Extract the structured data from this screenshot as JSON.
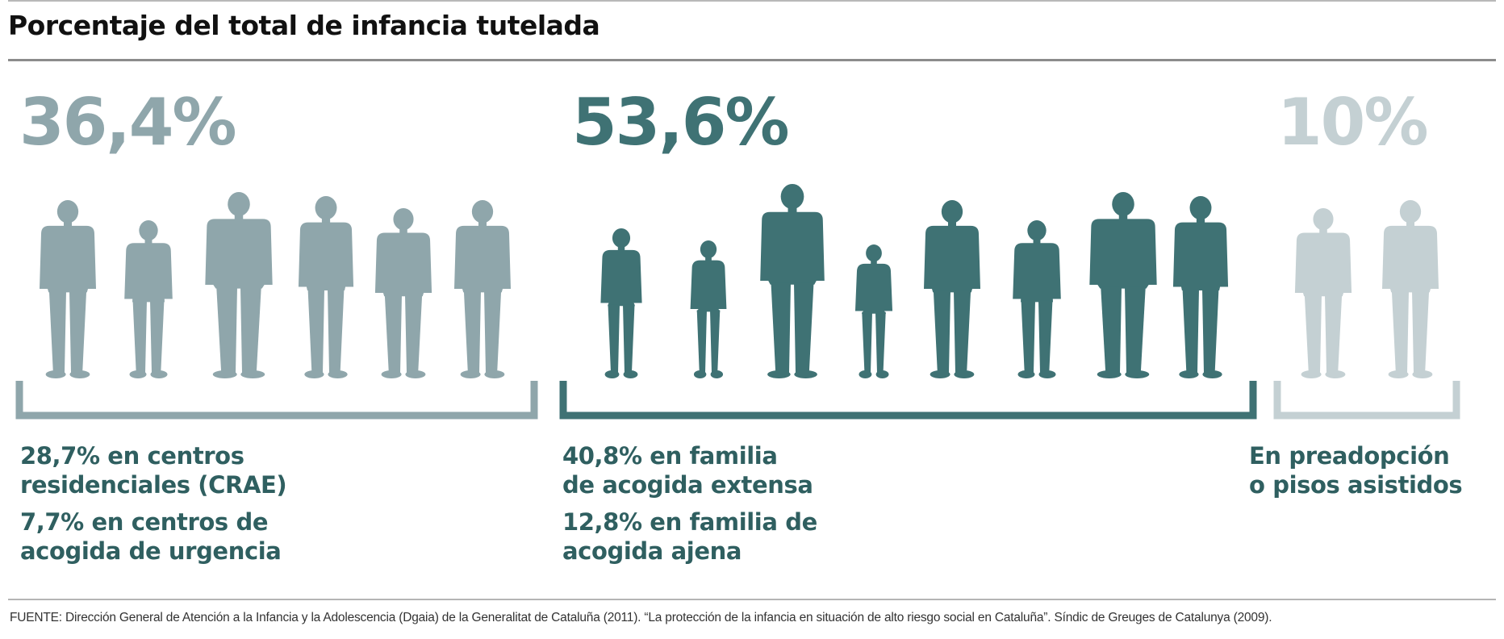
{
  "chart_data": {
    "type": "other",
    "title": "Porcentaje del total de infancia tutelada",
    "groups": [
      {
        "value": 36.4,
        "label": "36,4%",
        "color": "#8fa6ab",
        "figures": 6,
        "breakdown": [
          {
            "value": 28.7,
            "text1": "28,7% en centros",
            "text2": "residenciales (CRAE)"
          },
          {
            "value": 7.7,
            "text1": "7,7% en centros de",
            "text2": "acogida de urgencia"
          }
        ]
      },
      {
        "value": 53.6,
        "label": "53,6%",
        "color": "#3f7274",
        "figures": 8,
        "breakdown": [
          {
            "value": 40.8,
            "text1": "40,8% en familia",
            "text2": "de acogida extensa"
          },
          {
            "value": 12.8,
            "text1": "12,8% en familia de",
            "text2": "acogida ajena"
          }
        ]
      },
      {
        "value": 10,
        "label": "10%",
        "color": "#c4d0d3",
        "figures": 2,
        "breakdown": [
          {
            "text1": "En preadopción",
            "text2": "o pisos asistidos"
          }
        ]
      }
    ],
    "text_color": "#2f5f60",
    "source": "FUENTE: Dirección General de Atención a la Infancia y la Adolescencia (Dgaia) de la Generalitat de Cataluña (2011). “La protección de la infancia en situación de alto riesgo social en Cataluña”. Síndic de Greuges de Catalunya (2009)."
  }
}
